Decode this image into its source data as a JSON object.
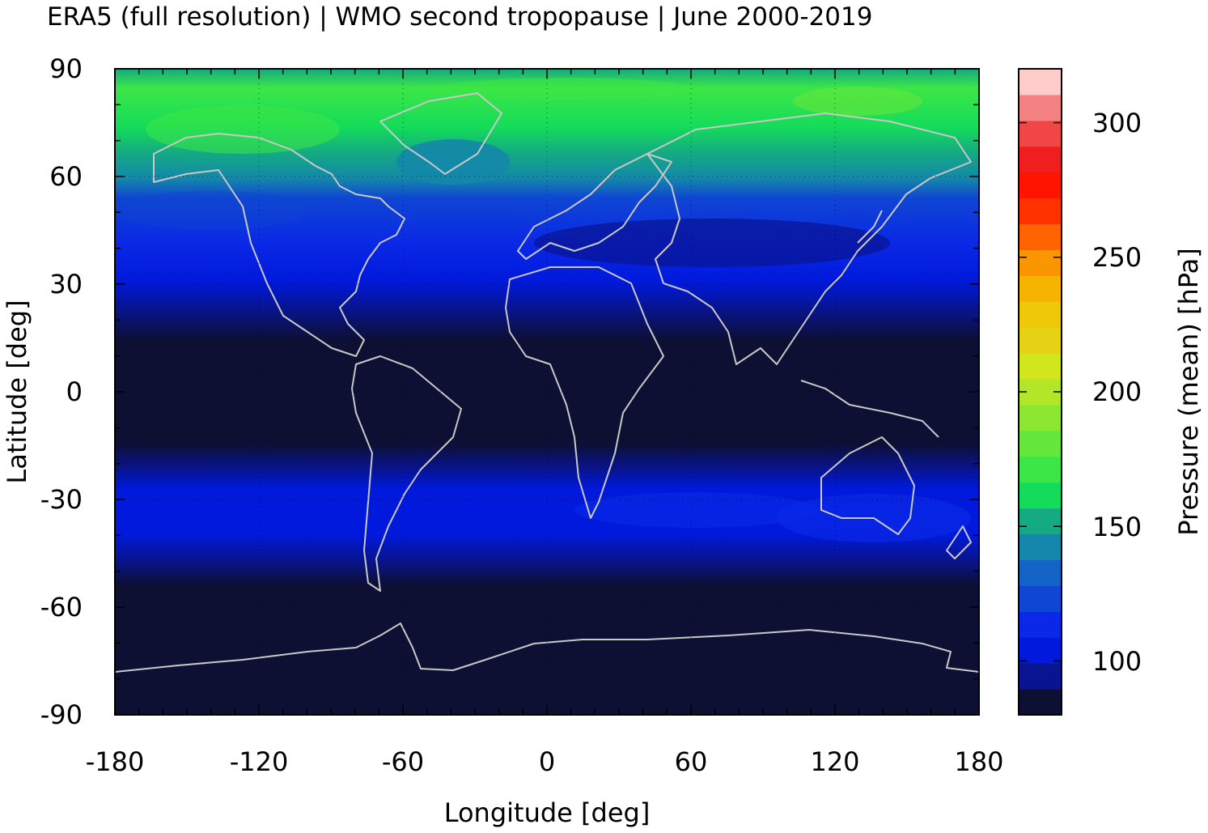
{
  "title": "ERA5 (full resolution) | WMO second tropopause | June 2000-2019",
  "axes": {
    "xlabel": "Longitude [deg]",
    "ylabel": "Latitude [deg]",
    "xlim": [
      -180,
      180
    ],
    "ylim": [
      -90,
      90
    ],
    "xticks": [
      "-180",
      "-120",
      "-60",
      "0",
      "60",
      "120",
      "180"
    ],
    "yticks": [
      "90",
      "60",
      "30",
      "0",
      "-30",
      "-60",
      "-90"
    ],
    "grid": "dotted"
  },
  "colorbar": {
    "label": "Pressure (mean) [hPa]",
    "ticks": [
      "100",
      "150",
      "200",
      "250",
      "300"
    ],
    "range": [
      80,
      320
    ],
    "colors": [
      "#0d0f33",
      "#081490",
      "#0019dc",
      "#0a28e6",
      "#0f46d2",
      "#1464c8",
      "#1487aa",
      "#14aa82",
      "#14dc5a",
      "#3ce646",
      "#64e63c",
      "#8ce632",
      "#b4e628",
      "#d2e61e",
      "#e6d214",
      "#f0c80a",
      "#f5b400",
      "#fa9600",
      "#ff6400",
      "#ff3200",
      "#ff1400",
      "#f01e1e",
      "#f04646",
      "#f58282",
      "#ffcccc"
    ]
  },
  "chart_data": {
    "type": "heatmap",
    "title": "ERA5 (full resolution) | WMO second tropopause | June 2000-2019",
    "xlabel": "Longitude [deg]",
    "ylabel": "Latitude [deg]",
    "xlim": [
      -180,
      180
    ],
    "ylim": [
      -90,
      90
    ],
    "zlabel": "Pressure (mean) [hPa]",
    "zlim": [
      80,
      320
    ],
    "zonal_mean_profile": [
      {
        "lat": 85,
        "value": 160
      },
      {
        "lat": 75,
        "value": 155
      },
      {
        "lat": 65,
        "value": 130
      },
      {
        "lat": 55,
        "value": 115
      },
      {
        "lat": 45,
        "value": 110
      },
      {
        "lat": 35,
        "value": 100
      },
      {
        "lat": 25,
        "value": 90
      },
      {
        "lat": 15,
        "value": 85
      },
      {
        "lat": 0,
        "value": 85
      },
      {
        "lat": -15,
        "value": 88
      },
      {
        "lat": -25,
        "value": 98
      },
      {
        "lat": -35,
        "value": 108
      },
      {
        "lat": -45,
        "value": 105
      },
      {
        "lat": -55,
        "value": 95
      },
      {
        "lat": -65,
        "value": 88
      },
      {
        "lat": -80,
        "value": 85
      }
    ]
  },
  "icons": [
    "coastline-overlay"
  ]
}
